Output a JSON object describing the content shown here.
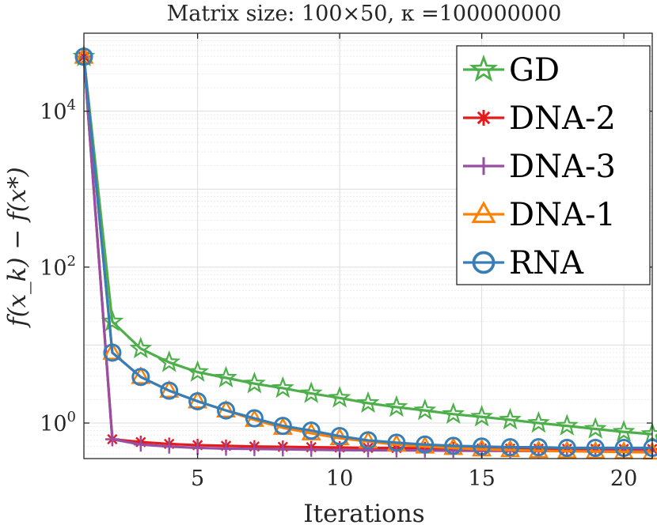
{
  "chart_data": {
    "type": "line",
    "title": "Matrix size: 100×50, κ =100000000",
    "xlabel": "Iterations",
    "ylabel": "f(x_k) − f(x*)",
    "yscale": "log",
    "xlim": [
      1,
      21
    ],
    "ylim": [
      0.35,
      100000
    ],
    "grid": true,
    "x_ticks": [
      5,
      10,
      15,
      20
    ],
    "x_tick_labels": [
      "5",
      "10",
      "15",
      "20"
    ],
    "y_ticks": [
      1,
      100,
      10000
    ],
    "y_tick_labels": [
      {
        "base": "10",
        "exp": "0"
      },
      {
        "base": "10",
        "exp": "2"
      },
      {
        "base": "10",
        "exp": "4"
      }
    ],
    "legend_position": "top-right",
    "x": [
      1,
      2,
      3,
      4,
      5,
      6,
      7,
      8,
      9,
      10,
      11,
      12,
      13,
      14,
      15,
      16,
      17,
      18,
      19,
      20,
      21
    ],
    "series": [
      {
        "name": "GD",
        "color": "#4daf4a",
        "marker": "pentagram",
        "values": [
          50000,
          20,
          9,
          6,
          4.5,
          3.8,
          3.2,
          2.8,
          2.4,
          2.1,
          1.8,
          1.6,
          1.45,
          1.3,
          1.2,
          1.1,
          1.0,
          0.92,
          0.84,
          0.77,
          0.72
        ]
      },
      {
        "name": "DNA-2",
        "color": "#e41a1c",
        "marker": "asterisk",
        "values": [
          50000,
          0.62,
          0.57,
          0.54,
          0.52,
          0.51,
          0.5,
          0.495,
          0.49,
          0.485,
          0.48,
          0.478,
          0.476,
          0.474,
          0.472,
          0.47,
          0.469,
          0.468,
          0.467,
          0.466,
          0.465
        ]
      },
      {
        "name": "DNA-3",
        "color": "#984ea3",
        "marker": "plus",
        "values": [
          50000,
          0.62,
          0.53,
          0.5,
          0.48,
          0.47,
          0.465,
          0.46,
          0.455,
          0.45,
          0.448,
          0.446,
          0.444,
          0.442,
          0.44,
          0.439,
          0.438,
          0.437,
          0.436,
          0.435,
          0.434
        ]
      },
      {
        "name": "DNA-1",
        "color": "#ff7f00",
        "marker": "triangle",
        "values": [
          50000,
          8,
          3.9,
          2.6,
          1.9,
          1.45,
          1.1,
          0.87,
          0.74,
          0.64,
          0.58,
          0.53,
          0.5,
          0.48,
          0.46,
          0.45,
          0.44,
          0.435,
          0.43,
          0.425,
          0.42
        ]
      },
      {
        "name": "RNA",
        "color": "#377eb8",
        "marker": "circle",
        "values": [
          50000,
          8,
          3.9,
          2.6,
          1.9,
          1.45,
          1.15,
          0.92,
          0.8,
          0.68,
          0.6,
          0.56,
          0.53,
          0.51,
          0.5,
          0.49,
          0.49,
          0.48,
          0.48,
          0.48,
          0.48
        ]
      }
    ]
  }
}
